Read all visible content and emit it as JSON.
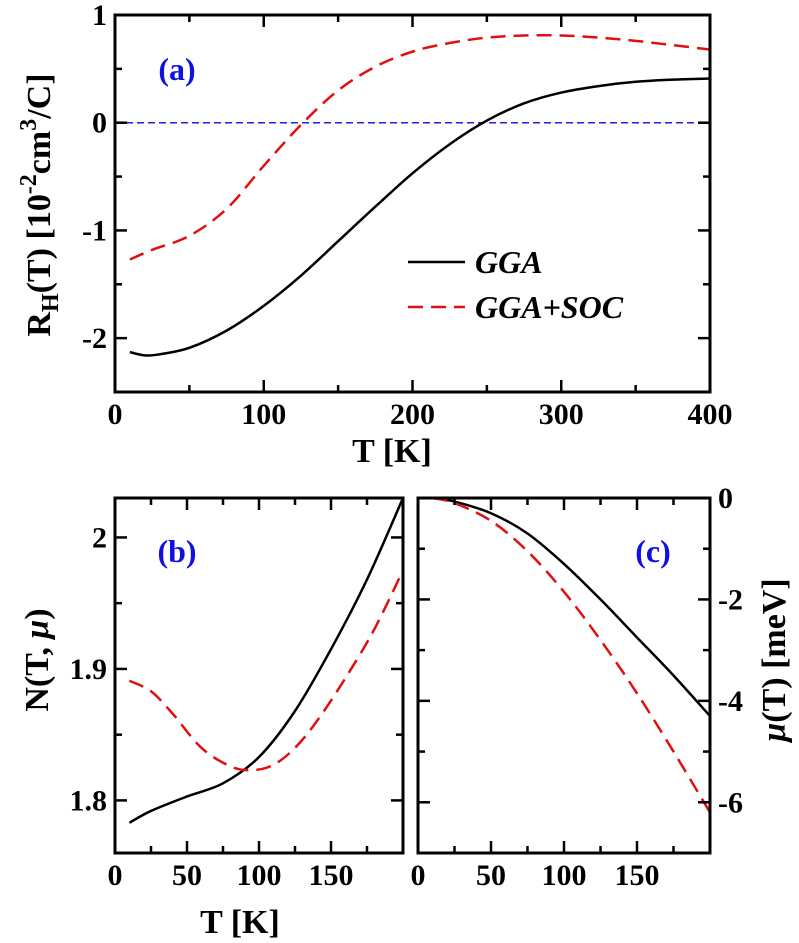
{
  "chart_data": [
    {
      "type": "line",
      "panel_label": "(a)",
      "xlabel": "T [K]",
      "ylabel": "R_H(T) [10^-2 cm^3/C]",
      "xlim": [
        0,
        400
      ],
      "ylim": [
        -2.5,
        1.0
      ],
      "xticks": [
        0,
        100,
        200,
        300,
        400
      ],
      "yticks": [
        -2,
        -1,
        0,
        1
      ],
      "grid": false,
      "legend_position": "center-right",
      "reference_line": {
        "y": 0,
        "color": "#2020e0",
        "style": "dashed"
      },
      "series": [
        {
          "name": "GGA",
          "color": "#000000",
          "style": "solid",
          "x": [
            10,
            20,
            30,
            50,
            75,
            100,
            125,
            150,
            175,
            200,
            225,
            250,
            275,
            300,
            325,
            350,
            375,
            400
          ],
          "y": [
            -2.13,
            -2.16,
            -2.15,
            -2.09,
            -1.93,
            -1.7,
            -1.42,
            -1.1,
            -0.78,
            -0.47,
            -0.2,
            0.02,
            0.18,
            0.28,
            0.34,
            0.38,
            0.4,
            0.41
          ]
        },
        {
          "name": "GGA+SOC",
          "color": "#e01010",
          "style": "dashed",
          "x": [
            10,
            25,
            50,
            75,
            100,
            125,
            150,
            175,
            200,
            225,
            250,
            275,
            300,
            325,
            350,
            375,
            400
          ],
          "y": [
            -1.27,
            -1.18,
            -1.05,
            -0.8,
            -0.4,
            -0.02,
            0.3,
            0.52,
            0.66,
            0.74,
            0.79,
            0.81,
            0.81,
            0.79,
            0.76,
            0.72,
            0.68
          ]
        }
      ]
    },
    {
      "type": "line",
      "panel_label": "(b)",
      "xlabel": "T [K]",
      "ylabel": "N(T, μ)",
      "xlim": [
        0,
        200
      ],
      "ylim": [
        1.76,
        2.03
      ],
      "xticks": [
        0,
        50,
        100,
        150
      ],
      "yticks": [
        1.8,
        1.9,
        2.0
      ],
      "grid": false,
      "series": [
        {
          "name": "GGA",
          "color": "#000000",
          "style": "solid",
          "x": [
            10,
            25,
            50,
            75,
            100,
            125,
            150,
            175,
            200
          ],
          "y": [
            1.783,
            1.792,
            1.803,
            1.813,
            1.833,
            1.868,
            1.915,
            1.968,
            2.03
          ]
        },
        {
          "name": "GGA+SOC",
          "color": "#e01010",
          "style": "dashed",
          "x": [
            10,
            25,
            40,
            60,
            80,
            95,
            110,
            125,
            140,
            160,
            180,
            200
          ],
          "y": [
            1.891,
            1.883,
            1.866,
            1.84,
            1.826,
            1.823,
            1.827,
            1.84,
            1.86,
            1.893,
            1.93,
            1.975
          ]
        }
      ]
    },
    {
      "type": "line",
      "panel_label": "(c)",
      "xlabel": "T [K]",
      "ylabel": "μ(T) [meV]",
      "xlim": [
        0,
        200
      ],
      "ylim": [
        -7.0,
        0.0
      ],
      "xticks": [
        0,
        50,
        100,
        150
      ],
      "yticks": [
        -6,
        -4,
        -2,
        0
      ],
      "grid": false,
      "series": [
        {
          "name": "GGA",
          "color": "#000000",
          "style": "solid",
          "x": [
            10,
            25,
            50,
            75,
            100,
            125,
            150,
            175,
            200
          ],
          "y": [
            0.0,
            -0.07,
            -0.3,
            -0.7,
            -1.3,
            -2.0,
            -2.75,
            -3.5,
            -4.3
          ]
        },
        {
          "name": "GGA+SOC",
          "color": "#e01010",
          "style": "dashed",
          "x": [
            10,
            25,
            50,
            75,
            100,
            125,
            150,
            175,
            200
          ],
          "y": [
            0.0,
            -0.1,
            -0.45,
            -1.05,
            -1.85,
            -2.8,
            -3.85,
            -5.0,
            -6.2
          ]
        }
      ]
    }
  ]
}
